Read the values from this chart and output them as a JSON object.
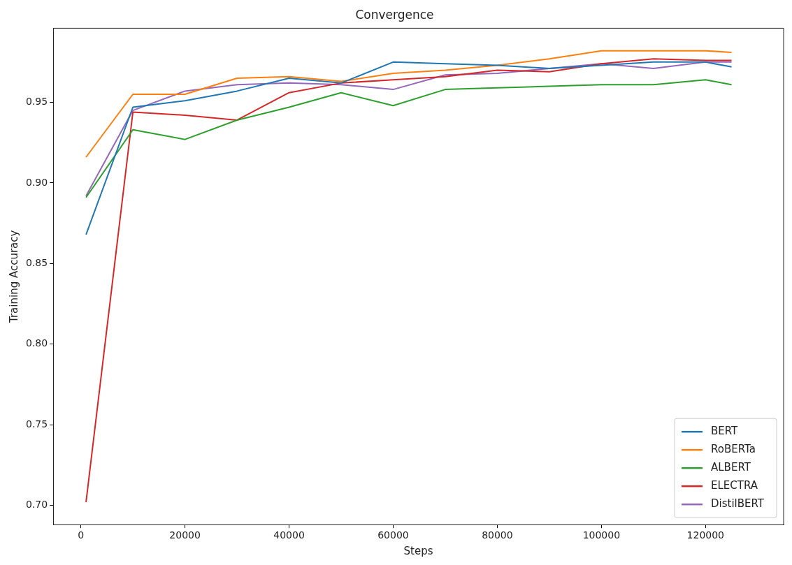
{
  "chart_data": {
    "type": "line",
    "title": "Convergence",
    "xlabel": "Steps",
    "ylabel": "Training Accuracy",
    "x": [
      1000,
      10000,
      20000,
      30000,
      40000,
      50000,
      60000,
      70000,
      80000,
      90000,
      100000,
      110000,
      120000,
      125000
    ],
    "series": [
      {
        "name": "BERT",
        "color": "#1f77b4",
        "values": [
          0.868,
          0.947,
          0.951,
          0.957,
          0.965,
          0.962,
          0.975,
          0.974,
          0.973,
          0.971,
          0.973,
          0.975,
          0.975,
          0.972
        ]
      },
      {
        "name": "RoBERTa",
        "color": "#ff7f0e",
        "values": [
          0.916,
          0.955,
          0.955,
          0.965,
          0.966,
          0.963,
          0.968,
          0.97,
          0.973,
          0.977,
          0.982,
          0.982,
          0.982,
          0.981
        ]
      },
      {
        "name": "ALBERT",
        "color": "#2ca02c",
        "values": [
          0.891,
          0.933,
          0.927,
          0.939,
          0.947,
          0.956,
          0.948,
          0.958,
          0.959,
          0.96,
          0.961,
          0.961,
          0.964,
          0.961
        ]
      },
      {
        "name": "ELECTRA",
        "color": "#d62728",
        "values": [
          0.702,
          0.944,
          0.942,
          0.939,
          0.956,
          0.962,
          0.964,
          0.966,
          0.97,
          0.969,
          0.974,
          0.977,
          0.976,
          0.976
        ]
      },
      {
        "name": "DistilBERT",
        "color": "#9467bd",
        "values": [
          0.892,
          0.945,
          0.957,
          0.961,
          0.962,
          0.961,
          0.958,
          0.967,
          0.968,
          0.971,
          0.974,
          0.971,
          0.975,
          0.975
        ]
      }
    ],
    "xlim": [
      -5300,
      135000
    ],
    "xticks": [
      0,
      20000,
      40000,
      60000,
      80000,
      100000,
      120000
    ],
    "ylim": [
      0.688,
      0.996
    ],
    "yticks": [
      {
        "value": 0.7,
        "label": "0.70"
      },
      {
        "value": 0.75,
        "label": "0.75"
      },
      {
        "value": 0.8,
        "label": "0.80"
      },
      {
        "value": 0.85,
        "label": "0.85"
      },
      {
        "value": 0.9,
        "label": "0.90"
      },
      {
        "value": 0.95,
        "label": "0.95"
      }
    ],
    "legend": "bottom right",
    "grid": false,
    "marker": "none",
    "line_style": "solid"
  }
}
